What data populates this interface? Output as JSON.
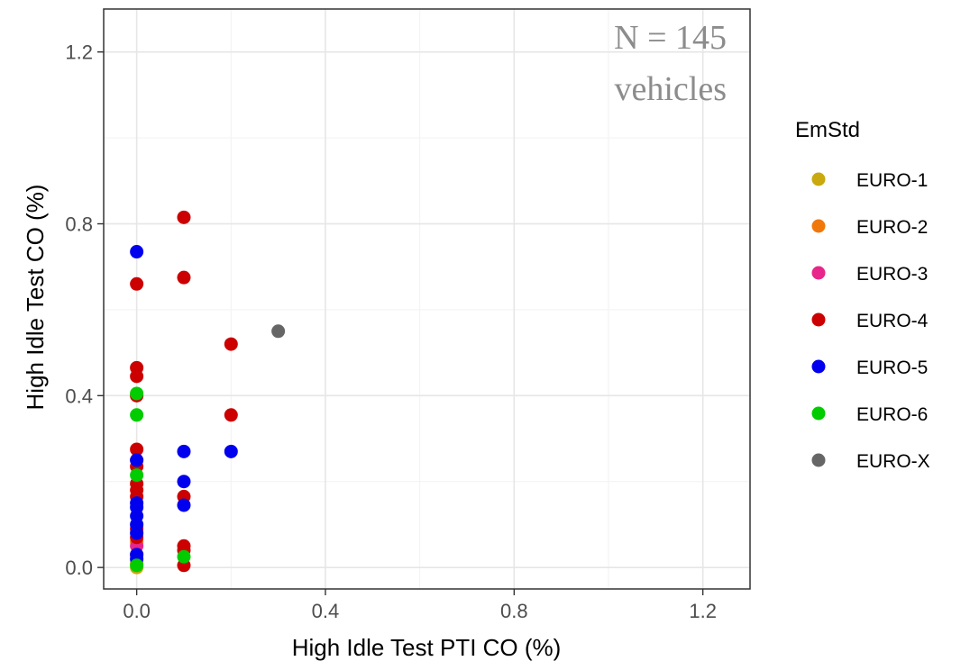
{
  "chart_data": {
    "type": "scatter",
    "xlabel": "High Idle Test PTI CO (%)",
    "ylabel": "High Idle Test CO (%)",
    "xlim": [
      -0.07,
      1.3
    ],
    "ylim": [
      -0.05,
      1.3
    ],
    "xticks": [
      0.0,
      0.4,
      0.8,
      1.2
    ],
    "yticks": [
      0.0,
      0.4,
      0.8,
      1.2
    ],
    "xtick_labels": [
      "0.0",
      "0.4",
      "0.8",
      "1.2"
    ],
    "ytick_labels": [
      "0.0",
      "0.4",
      "0.8",
      "1.2"
    ],
    "grid": true,
    "annotation": {
      "line1": "N = 145",
      "line2": "vehicles"
    },
    "legend": {
      "title": "EmStd",
      "position": "right"
    },
    "series": [
      {
        "name": "EURO-1",
        "color": "#C9A90E",
        "points": [
          [
            0.0,
            0.0
          ],
          [
            0.0,
            0.01
          ]
        ]
      },
      {
        "name": "EURO-2",
        "color": "#F0780A",
        "points": [
          [
            0.0,
            0.25
          ],
          [
            0.0,
            0.06
          ],
          [
            0.0,
            0.03
          ]
        ]
      },
      {
        "name": "EURO-3",
        "color": "#E8258A",
        "points": [
          [
            0.0,
            0.05
          ]
        ]
      },
      {
        "name": "EURO-4",
        "color": "#CC0000",
        "points": [
          [
            0.0,
            0.66
          ],
          [
            0.0,
            0.465
          ],
          [
            0.0,
            0.445
          ],
          [
            0.0,
            0.4
          ],
          [
            0.0,
            0.275
          ],
          [
            0.0,
            0.235
          ],
          [
            0.0,
            0.195
          ],
          [
            0.0,
            0.18
          ],
          [
            0.0,
            0.165
          ],
          [
            0.0,
            0.09
          ],
          [
            0.0,
            0.07
          ],
          [
            0.1,
            0.815
          ],
          [
            0.1,
            0.675
          ],
          [
            0.1,
            0.165
          ],
          [
            0.1,
            0.05
          ],
          [
            0.1,
            0.04
          ],
          [
            0.1,
            0.005
          ],
          [
            0.2,
            0.52
          ],
          [
            0.2,
            0.355
          ]
        ]
      },
      {
        "name": "EURO-5",
        "color": "#0000EE",
        "points": [
          [
            0.0,
            0.735
          ],
          [
            0.0,
            0.25
          ],
          [
            0.0,
            0.15
          ],
          [
            0.0,
            0.14
          ],
          [
            0.0,
            0.12
          ],
          [
            0.0,
            0.1
          ],
          [
            0.0,
            0.08
          ],
          [
            0.0,
            0.03
          ],
          [
            0.0,
            0.02
          ],
          [
            0.1,
            0.27
          ],
          [
            0.1,
            0.2
          ],
          [
            0.1,
            0.145
          ],
          [
            0.2,
            0.27
          ]
        ]
      },
      {
        "name": "EURO-6",
        "color": "#00CC00",
        "points": [
          [
            0.0,
            0.405
          ],
          [
            0.0,
            0.355
          ],
          [
            0.0,
            0.215
          ],
          [
            0.0,
            0.005
          ],
          [
            0.1,
            0.025
          ]
        ]
      },
      {
        "name": "EURO-X",
        "color": "#666666",
        "points": [
          [
            0.3,
            0.55
          ]
        ]
      }
    ]
  }
}
